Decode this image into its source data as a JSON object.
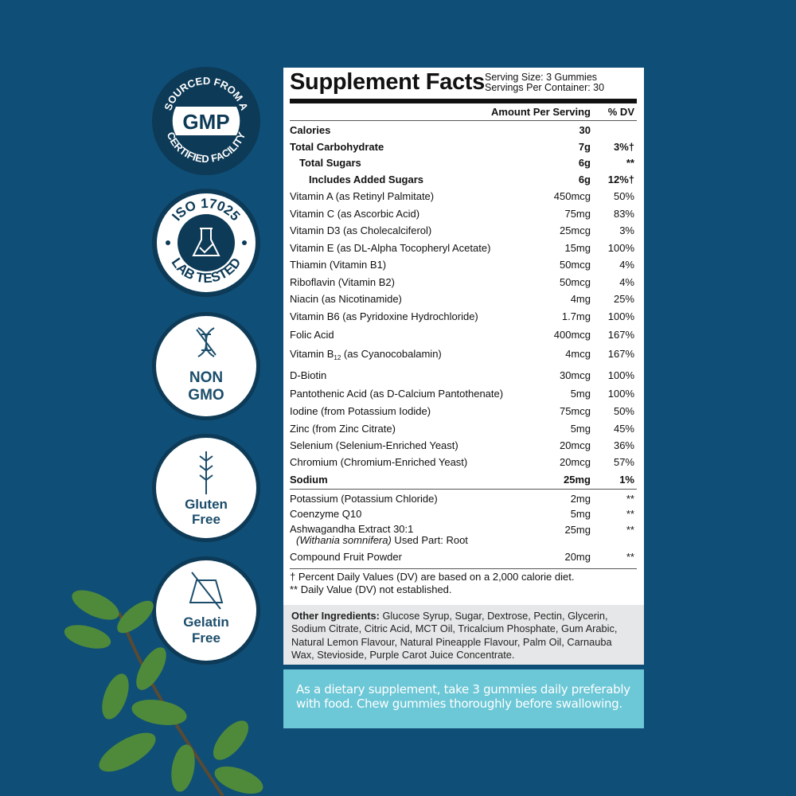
{
  "badges": [
    {
      "top_text": "SOURCED FROM A",
      "center": "GMP",
      "bottom_text": "CERTIFIED FACILITY",
      "icon": "gmp-badge"
    },
    {
      "top_text": "ISO 17025",
      "bottom_text": "LAB TESTED",
      "icon": "flask-check-icon"
    },
    {
      "lines": [
        "NON",
        "GMO"
      ],
      "icon": "dna-icon"
    },
    {
      "lines": [
        "Gluten",
        "Free"
      ],
      "icon": "wheat-icon"
    },
    {
      "lines": [
        "Gelatin",
        "Free"
      ],
      "icon": "no-gelatin-icon"
    }
  ],
  "facts": {
    "title": "Supplement Facts",
    "serving_size": "Serving Size: 3 Gummies",
    "servings_per_container": "Servings Per Container: 30",
    "col_amount": "Amount Per Serving",
    "col_dv": "% DV",
    "rows": [
      {
        "name": "Calories",
        "amount": "30",
        "dv": "",
        "bold": true
      },
      {
        "name": "Total Carbohydrate",
        "amount": "7g",
        "dv": "3%†",
        "bold": true
      },
      {
        "name": "Total Sugars",
        "amount": "6g",
        "dv": "**",
        "bold": true,
        "indent": 1
      },
      {
        "name": "Includes Added Sugars",
        "amount": "6g",
        "dv": "12%†",
        "bold": true,
        "indent": 2
      },
      {
        "name": "Vitamin A (as Retinyl Palmitate)",
        "amount": "450mcg",
        "dv": "50%"
      },
      {
        "name": "Vitamin C (as Ascorbic Acid)",
        "amount": "75mg",
        "dv": "83%"
      },
      {
        "name": "Vitamin D3 (as Cholecalciferol)",
        "amount": "25mcg",
        "dv": "3%"
      },
      {
        "name": "Vitamin E (as DL-Alpha Tocopheryl Acetate)",
        "amount": "15mg",
        "dv": "100%"
      },
      {
        "name": "Thiamin (Vitamin B1)",
        "amount": "50mcg",
        "dv": "4%"
      },
      {
        "name": "Riboflavin (Vitamin B2)",
        "amount": "50mcg",
        "dv": "4%"
      },
      {
        "name": "Niacin (as Nicotinamide)",
        "amount": "4mg",
        "dv": "25%"
      },
      {
        "name": "Vitamin B6 (as Pyridoxine Hydrochloride)",
        "amount": "1.7mg",
        "dv": "100%"
      },
      {
        "name": "Folic Acid",
        "amount": "400mcg",
        "dv": "167%"
      },
      {
        "name": "Vitamin B",
        "sub": "12",
        "name_rest": " (as Cyanocobalamin)",
        "amount": "4mcg",
        "dv": "167%"
      },
      {
        "name": "D-Biotin",
        "amount": "30mcg",
        "dv": "100%"
      },
      {
        "name": "Pantothenic Acid (as D-Calcium Pantothenate)",
        "amount": "5mg",
        "dv": "100%"
      },
      {
        "name": "Iodine (from Potassium Iodide)",
        "amount": "75mcg",
        "dv": "50%"
      },
      {
        "name": "Zinc (from Zinc Citrate)",
        "amount": "5mg",
        "dv": "45%"
      },
      {
        "name": "Selenium (Selenium-Enriched Yeast)",
        "amount": "20mcg",
        "dv": "36%"
      },
      {
        "name": "Chromium (Chromium-Enriched Yeast)",
        "amount": "20mcg",
        "dv": "57%"
      },
      {
        "name": "Sodium",
        "amount": "25mg",
        "dv": "1%",
        "bold": true
      },
      {
        "name": "Potassium (Potassium Chloride)",
        "amount": "2mg",
        "dv": "**"
      },
      {
        "name": "Coenzyme Q10",
        "amount": "5mg",
        "dv": "**"
      },
      {
        "name": "Ashwagandha Extract 30:1",
        "name2_italic": "(Withania somnifera)",
        "name2_rest": " Used Part: Root",
        "amount": "25mg",
        "dv": "**"
      },
      {
        "name": "Compound Fruit Powder",
        "amount": "20mg",
        "dv": "**"
      }
    ],
    "footnote1": "† Percent Daily Values (DV) are based on a 2,000 calorie diet.",
    "footnote2": "** Daily Value (DV) not established."
  },
  "other_ingredients": {
    "label": "Other Ingredients:",
    "text": " Glucose Syrup, Sugar, Dextrose, Pectin, Glycerin, Sodium Citrate, Citric Acid, MCT Oil, Tricalcium Phosphate, Gum Arabic, Natural Lemon Flavour, Natural Pineapple Flavour, Palm Oil, Carnauba Wax, Stevioside, Purple Carot Juice Concentrate."
  },
  "directions": "As a dietary supplement, take 3 gummies daily preferably with food. Chew gummies thoroughly before swallowing.",
  "colors": {
    "background": "#0f4e77",
    "badge_dark": "#0d3a56",
    "directions_bg": "#6cc7d6",
    "other_bg": "#e6e7e8"
  }
}
